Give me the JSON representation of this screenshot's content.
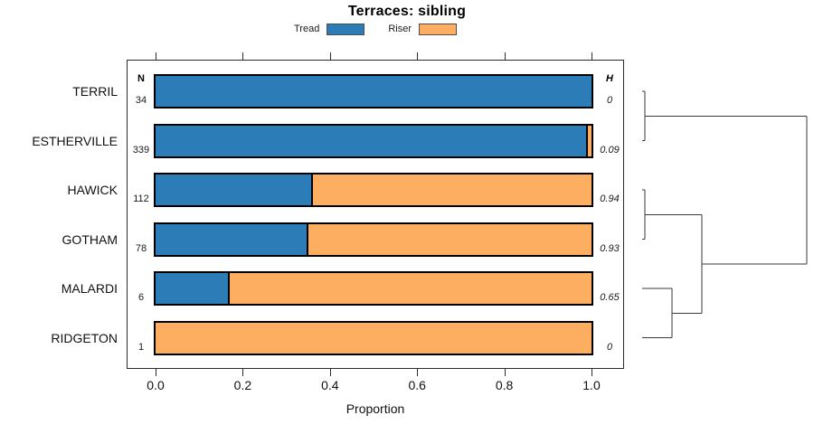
{
  "columns": {
    "n_header": "N",
    "h_header": "H"
  },
  "chart_data": {
    "type": "bar",
    "orientation": "horizontal",
    "stacked": true,
    "title": "Terraces: sibling",
    "xlabel": "Proportion",
    "xlim": [
      0.0,
      1.0
    ],
    "x_tick_labels": [
      "0.0",
      "0.2",
      "0.4",
      "0.6",
      "0.8",
      "1.0"
    ],
    "grid": false,
    "legend_position": "top-center",
    "categories": [
      "TERRIL",
      "ESTHERVILLE",
      "HAWICK",
      "GOTHAM",
      "MALARDI",
      "RIDGETON"
    ],
    "series": [
      {
        "name": "Tread",
        "color": "#2C7CB8",
        "values": [
          1.0,
          0.988,
          0.357,
          0.346,
          0.167,
          0.0
        ]
      },
      {
        "name": "Riser",
        "color": "#FDAE61",
        "values": [
          0.0,
          0.012,
          0.643,
          0.654,
          0.833,
          1.0
        ]
      }
    ],
    "n_values": [
      "34",
      "339",
      "112",
      "78",
      "6",
      "1"
    ],
    "h_values": [
      "0",
      "0.09",
      "0.94",
      "0.93",
      "0.65",
      "0"
    ],
    "dendrogram": {
      "leaves": [
        "TERRIL",
        "ESTHERVILLE",
        "HAWICK",
        "GOTHAM",
        "MALARDI",
        "RIDGETON"
      ],
      "joins": [
        {
          "id": "J0",
          "a": "L0",
          "b": "L1",
          "height": 0.016
        },
        {
          "id": "J1",
          "a": "L2",
          "b": "L3",
          "height": 0.016
        },
        {
          "id": "J2",
          "a": "L4",
          "b": "L5",
          "height": 0.178
        },
        {
          "id": "J3",
          "a": "J1",
          "b": "J2",
          "height": 0.357
        },
        {
          "id": "J4",
          "a": "J0",
          "b": "J3",
          "height": 0.984
        }
      ]
    }
  }
}
